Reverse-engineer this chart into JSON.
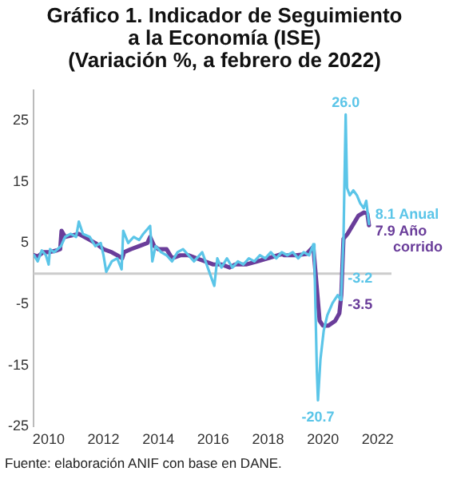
{
  "chart_data": {
    "type": "line",
    "title": "Gráfico 1. Indicador de Seguimiento\na la Economía (ISE)\n(Variación %, a febrero de 2022)",
    "annotations": [
      "Fuente: elaboración ANIF con base en DANE."
    ],
    "xlim": [
      2009.45,
      2022.5
    ],
    "xticks": [
      2010,
      2012,
      2014,
      2016,
      2018,
      2020,
      2022
    ],
    "ylim": [
      -25,
      30
    ],
    "yticks": [
      -25,
      -15,
      -5,
      5,
      15,
      25
    ],
    "grid": false,
    "legend": false,
    "marker": "none",
    "line_style": "solid",
    "ref_lines": [
      {
        "axis": "y",
        "value": 0,
        "color": "#cccccc"
      }
    ],
    "series": [
      {
        "name": "Anual",
        "color": "#5bc5e8",
        "x": [
          2009.47,
          2009.6,
          2009.75,
          2009.9,
          2010.0,
          2010.05,
          2010.2,
          2010.45,
          2010.6,
          2010.8,
          2011.0,
          2011.1,
          2011.25,
          2011.5,
          2011.7,
          2011.9,
          2012.0,
          2012.1,
          2012.3,
          2012.5,
          2012.66,
          2012.72,
          2012.9,
          2013.1,
          2013.3,
          2013.45,
          2013.7,
          2013.78,
          2013.9,
          2014.1,
          2014.3,
          2014.5,
          2014.7,
          2014.9,
          2015.1,
          2015.3,
          2015.6,
          2015.8,
          2016.04,
          2016.15,
          2016.3,
          2016.5,
          2016.7,
          2016.9,
          2017.1,
          2017.3,
          2017.5,
          2017.7,
          2017.9,
          2018.1,
          2018.3,
          2018.5,
          2018.7,
          2018.9,
          2019.1,
          2019.3,
          2019.5,
          2019.65,
          2019.69,
          2019.78,
          2019.82,
          2019.91,
          2020.03,
          2020.16,
          2020.35,
          2020.54,
          2020.64,
          2020.67,
          2020.75,
          2020.83,
          2020.88,
          2020.98,
          2021.11,
          2021.24,
          2021.36,
          2021.49,
          2021.58,
          2021.68
        ],
        "values": [
          3.0,
          2.0,
          3.8,
          3.0,
          1.5,
          4.0,
          3.5,
          4.5,
          6.0,
          6.5,
          6.0,
          8.5,
          6.5,
          6.0,
          4.5,
          5.0,
          3.0,
          0.3,
          2.0,
          2.5,
          0.7,
          7.0,
          5.0,
          6.0,
          5.5,
          6.5,
          7.8,
          2.0,
          4.5,
          3.5,
          3.0,
          2.0,
          3.5,
          4.0,
          3.0,
          2.0,
          3.5,
          1.0,
          -2.0,
          2.5,
          1.0,
          2.5,
          1.0,
          2.0,
          1.5,
          2.5,
          2.0,
          3.0,
          2.5,
          3.5,
          2.5,
          3.5,
          3.0,
          3.5,
          2.5,
          3.5,
          3.0,
          4.8,
          2.3,
          -16,
          -20.7,
          -14,
          -9.3,
          -6.8,
          -4.8,
          -3.5,
          -4.3,
          -3.2,
          5.7,
          26.0,
          14,
          12.8,
          13.6,
          12.8,
          11.5,
          10.7,
          11.9,
          8.1
        ],
        "value_labels": [
          null,
          null,
          null,
          null,
          null,
          null,
          null,
          null,
          null,
          null,
          null,
          null,
          null,
          null,
          null,
          null,
          null,
          null,
          null,
          null,
          null,
          null,
          null,
          null,
          null,
          null,
          null,
          null,
          null,
          null,
          null,
          null,
          null,
          null,
          null,
          null,
          null,
          null,
          null,
          null,
          null,
          null,
          null,
          null,
          null,
          null,
          null,
          null,
          null,
          null,
          null,
          null,
          null,
          null,
          null,
          null,
          null,
          null,
          null,
          null,
          "-20.7",
          null,
          null,
          null,
          null,
          null,
          null,
          "-3.2",
          null,
          "26.0",
          null,
          null,
          null,
          null,
          null,
          null,
          null,
          "8.1"
        ]
      },
      {
        "name": "Año corrido",
        "color": "#6a3d9a",
        "x": [
          2009.47,
          2009.6,
          2009.8,
          2010.0,
          2010.3,
          2010.42,
          2010.47,
          2010.6,
          2010.8,
          2011.1,
          2011.3,
          2011.5,
          2011.7,
          2012.0,
          2012.3,
          2012.5,
          2012.68,
          2012.75,
          2013.0,
          2013.3,
          2013.6,
          2013.7,
          2013.85,
          2014.0,
          2014.3,
          2014.5,
          2014.8,
          2015.1,
          2015.4,
          2015.7,
          2016.0,
          2016.3,
          2016.6,
          2016.8,
          2017.2,
          2017.6,
          2018.0,
          2018.5,
          2018.6,
          2019.0,
          2019.4,
          2019.65,
          2019.88,
          2020.0,
          2020.2,
          2020.45,
          2020.6,
          2020.67,
          2020.75,
          2020.9,
          2021.1,
          2021.3,
          2021.5,
          2021.62,
          2021.68
        ],
        "values": [
          3.0,
          2.8,
          3.5,
          3.5,
          3.8,
          4.0,
          7.0,
          6.0,
          6.2,
          6.5,
          6.0,
          5.5,
          5.0,
          4.0,
          3.5,
          3.0,
          2.5,
          3.5,
          4.0,
          4.5,
          5.0,
          6.0,
          4.5,
          4.0,
          4.0,
          2.5,
          3.0,
          3.0,
          2.5,
          2.0,
          1.5,
          1.5,
          1.0,
          1.5,
          1.5,
          2.0,
          2.5,
          3.2,
          3.0,
          3.0,
          3.2,
          4.4,
          -7.7,
          -8.5,
          -8.5,
          -7.7,
          -6.5,
          -3.5,
          5.7,
          6.5,
          8.0,
          9.5,
          10.0,
          9.8,
          7.9
        ],
        "value_labels": [
          null,
          null,
          null,
          null,
          null,
          null,
          null,
          null,
          null,
          null,
          null,
          null,
          null,
          null,
          null,
          null,
          null,
          null,
          null,
          null,
          null,
          null,
          null,
          null,
          null,
          null,
          null,
          null,
          null,
          null,
          null,
          null,
          null,
          null,
          null,
          null,
          null,
          null,
          null,
          null,
          null,
          null,
          null,
          null,
          null,
          null,
          null,
          "-3.5",
          null,
          null,
          null,
          null,
          null,
          null,
          "7.9"
        ]
      }
    ]
  }
}
